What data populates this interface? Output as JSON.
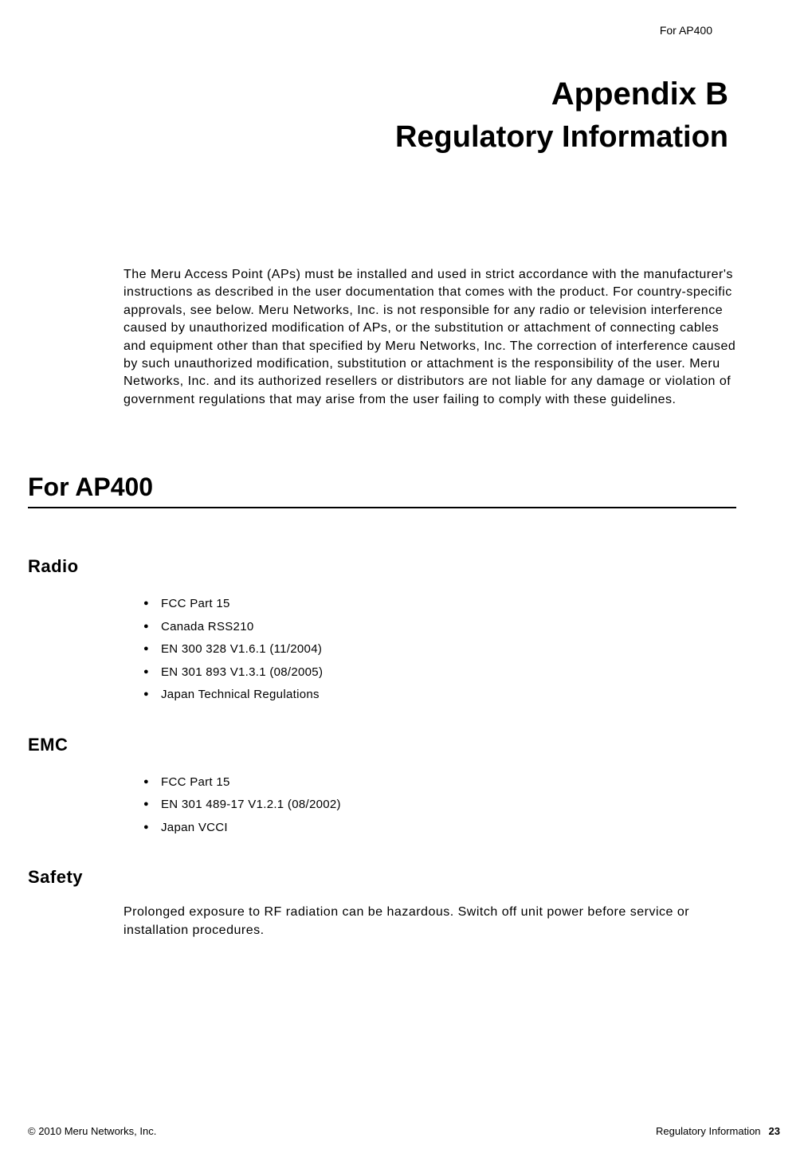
{
  "running_header": "For AP400",
  "appendix_label": "Appendix B",
  "chapter_title": "Regulatory Information",
  "intro_paragraph": "The Meru Access Point (APs) must be installed and used in strict accordance with the manufacturer's instructions as described in the user documentation that comes with the product. For country-specific approvals, see below. Meru Networks, Inc. is not responsible for any radio or television interference caused by unauthorized modification of APs, or the substitution or attachment of connecting cables and equipment other than that specified by Meru Networks, Inc. The correction of interference caused by such unauthorized modification, substitution or attachment is the responsibility of the user. Meru Networks, Inc. and its authorized resellers or distributors are not liable for any damage or violation of government regulations that may arise from the user failing to comply with these guidelines.",
  "section_h1": "For AP400",
  "sections": {
    "radio": {
      "title": "Radio",
      "items": [
        "FCC Part 15",
        "Canada RSS210",
        "EN 300 328 V1.6.1 (11/2004)",
        "EN 301 893 V1.3.1 (08/2005)",
        "Japan Technical Regulations"
      ]
    },
    "emc": {
      "title": "EMC",
      "items": [
        "FCC Part 15",
        "EN 301 489-17 V1.2.1 (08/2002)",
        "Japan VCCI"
      ]
    },
    "safety": {
      "title": "Safety",
      "text": "Prolonged exposure to RF radiation can be hazardous. Switch off unit power before service or installation procedures."
    }
  },
  "footer": {
    "copyright": "© 2010 Meru Networks, Inc.",
    "doc_title": "Regulatory Information",
    "page_number": "23"
  },
  "colors": {
    "text": "#000000",
    "background": "#ffffff",
    "rule": "#000000"
  },
  "typography": {
    "appendix_title_size": 40,
    "chapter_title_size": 38,
    "h1_size": 32,
    "h2_size": 22,
    "body_size": 16,
    "list_size": 15,
    "footer_size": 13,
    "header_size": 14
  }
}
